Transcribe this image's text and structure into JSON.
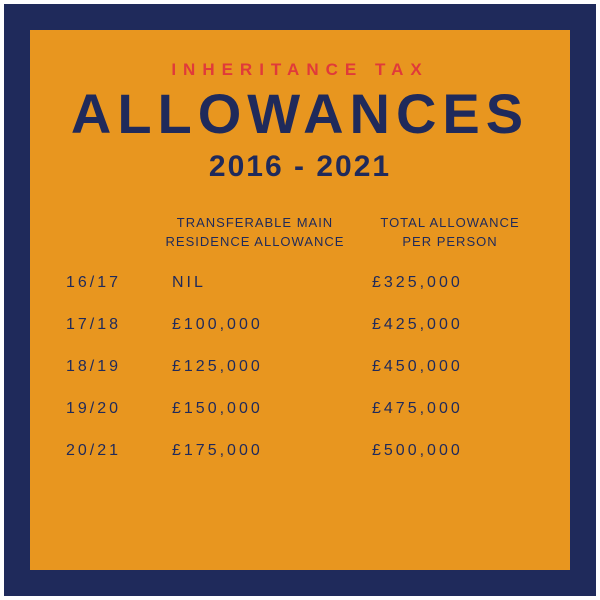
{
  "header": {
    "overline": "INHERITANCE TAX",
    "title": "ALLOWANCES",
    "years": "2016 - 2021"
  },
  "columns": {
    "col1": "",
    "col2_line1": "TRANSFERABLE MAIN",
    "col2_line2": "RESIDENCE ALLOWANCE",
    "col3_line1": "TOTAL ALLOWANCE",
    "col3_line2": "PER PERSON"
  },
  "rows": [
    {
      "year": "16/17",
      "transferable": "NIL",
      "total": "£325,000"
    },
    {
      "year": "17/18",
      "transferable": "£100,000",
      "total": "£425,000"
    },
    {
      "year": "18/19",
      "transferable": "£125,000",
      "total": "£450,000"
    },
    {
      "year": "19/20",
      "transferable": "£150,000",
      "total": "£475,000"
    },
    {
      "year": "20/21",
      "transferable": "£175,000",
      "total": "£500,000"
    }
  ],
  "colors": {
    "frame": "#1f2a5b",
    "panel": "#e8961f",
    "accent": "#e03a3a",
    "text": "#1f2a5b"
  }
}
